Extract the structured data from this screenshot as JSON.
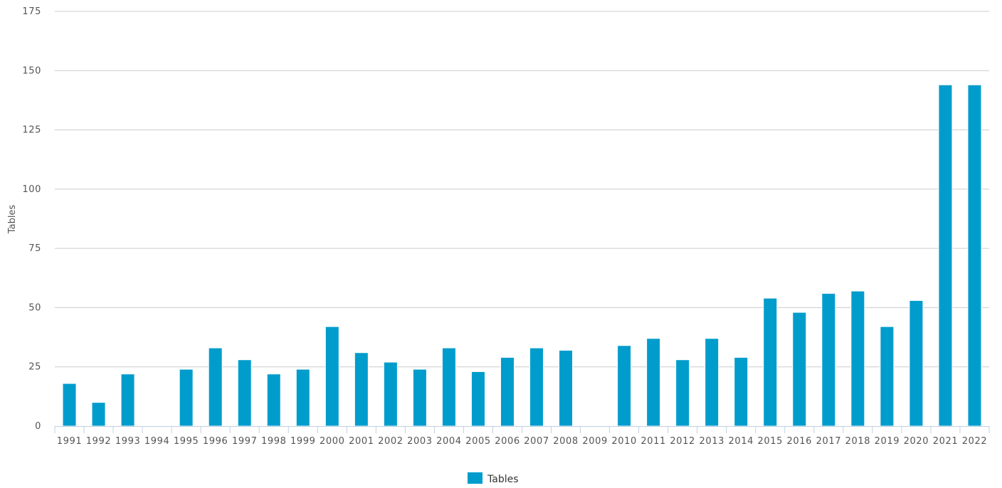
{
  "chart_data": {
    "type": "bar",
    "title": "",
    "xlabel": "",
    "ylabel": "Tables",
    "ylim": [
      0,
      175
    ],
    "yticks": [
      0,
      25,
      50,
      75,
      100,
      125,
      150,
      175
    ],
    "grid": true,
    "legend_position": "bottom-center",
    "categories": [
      "1991",
      "1992",
      "1993",
      "1994",
      "1995",
      "1996",
      "1997",
      "1998",
      "1999",
      "2000",
      "2001",
      "2002",
      "2003",
      "2004",
      "2005",
      "2006",
      "2007",
      "2008",
      "2009",
      "2010",
      "2011",
      "2012",
      "2013",
      "2014",
      "2015",
      "2016",
      "2017",
      "2018",
      "2019",
      "2020",
      "2021",
      "2022"
    ],
    "series": [
      {
        "name": "Tables",
        "color": "#009ccc",
        "values": [
          18,
          10,
          22,
          0,
          24,
          33,
          28,
          22,
          24,
          42,
          31,
          27,
          24,
          33,
          23,
          29,
          33,
          32,
          0,
          34,
          37,
          28,
          37,
          29,
          54,
          48,
          56,
          57,
          42,
          53,
          144,
          144
        ]
      }
    ]
  }
}
